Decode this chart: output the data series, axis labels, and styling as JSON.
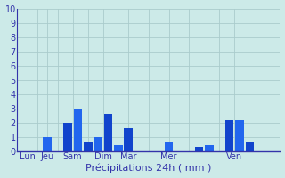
{
  "title": "",
  "xlabel": "Précipitations 24h ( mm )",
  "ylabel": "",
  "background_color": "#cceae8",
  "ylim": [
    0,
    10
  ],
  "yticks": [
    0,
    1,
    2,
    3,
    4,
    5,
    6,
    7,
    8,
    9,
    10
  ],
  "day_labels": [
    "Lun",
    "Jeu",
    "Sam",
    "Dim",
    "Mar",
    "Mer",
    "Ven"
  ],
  "bars": [
    {
      "x": 1,
      "height": 0.0,
      "color": "#1144cc"
    },
    {
      "x": 3,
      "height": 1.0,
      "color": "#2266ee"
    },
    {
      "x": 5,
      "height": 2.0,
      "color": "#1144cc"
    },
    {
      "x": 6,
      "height": 2.9,
      "color": "#2266ee"
    },
    {
      "x": 7,
      "height": 0.6,
      "color": "#1144cc"
    },
    {
      "x": 8,
      "height": 1.0,
      "color": "#2266ee"
    },
    {
      "x": 9,
      "height": 2.6,
      "color": "#1144cc"
    },
    {
      "x": 10,
      "height": 0.4,
      "color": "#2266ee"
    },
    {
      "x": 11,
      "height": 1.6,
      "color": "#1144cc"
    },
    {
      "x": 15,
      "height": 0.6,
      "color": "#2266ee"
    },
    {
      "x": 18,
      "height": 0.3,
      "color": "#1144cc"
    },
    {
      "x": 19,
      "height": 0.45,
      "color": "#2266ee"
    },
    {
      "x": 21,
      "height": 2.2,
      "color": "#1144cc"
    },
    {
      "x": 22,
      "height": 2.15,
      "color": "#2266ee"
    },
    {
      "x": 23,
      "height": 0.6,
      "color": "#1144cc"
    }
  ],
  "day_tick_positions": [
    1,
    3,
    5.5,
    8.5,
    11,
    15,
    21.5
  ],
  "day_labels_list": [
    "Lun",
    "Jeu",
    "Sam",
    "Dim",
    "Mar",
    "Mer",
    "Ven"
  ],
  "grid_color": "#aacccc",
  "axis_color": "#3333aa",
  "tick_color": "#3333aa",
  "xlabel_color": "#3333aa",
  "xlabel_fontsize": 8,
  "tick_fontsize": 7,
  "xlim": [
    0,
    26
  ],
  "bar_width": 0.85
}
